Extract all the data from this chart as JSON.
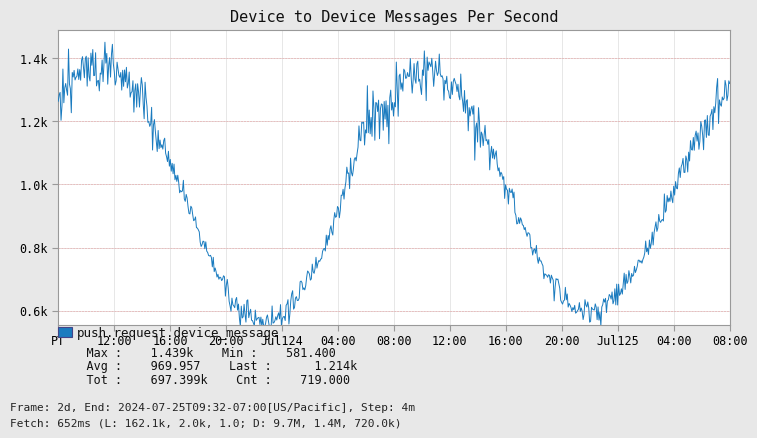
{
  "title": "Device to Device Messages Per Second",
  "line_color": "#1a7bbf",
  "bg_color": "#e8e8e8",
  "plot_bg_color": "#ffffff",
  "grid_color": "#bbbbbb",
  "grid_color2": "#dddddd",
  "ylim": [
    555,
    1490
  ],
  "yticks": [
    600,
    800,
    1000,
    1200,
    1400
  ],
  "ytick_labels": [
    "0.6k",
    "0.8k",
    "1.0k",
    "1.2k",
    "1.4k"
  ],
  "xtick_labels": [
    "PT",
    "12:00",
    "16:00",
    "20:00",
    "Jul124",
    "04:00",
    "08:00",
    "12:00",
    "16:00",
    "20:00",
    "Jul125",
    "04:00",
    "08:00"
  ],
  "legend_label": "push.request.device_message",
  "legend_color": "#1a7bbf",
  "stats_line1": "    Max :    1.439k    Min :    581.400",
  "stats_line2": "    Avg :    969.957    Last :      1.214k",
  "stats_line3": "    Tot :    697.399k    Cnt :    719.000",
  "frame_text": "Frame: 2d, End: 2024-07-25T09:32-07:00[US/Pacific], Step: 4m",
  "fetch_text": "Fetch: 652ms (L: 162.1k, 2.0k, 1.0; D: 9.7M, 1.4M, 720.0k)",
  "n_points": 720
}
